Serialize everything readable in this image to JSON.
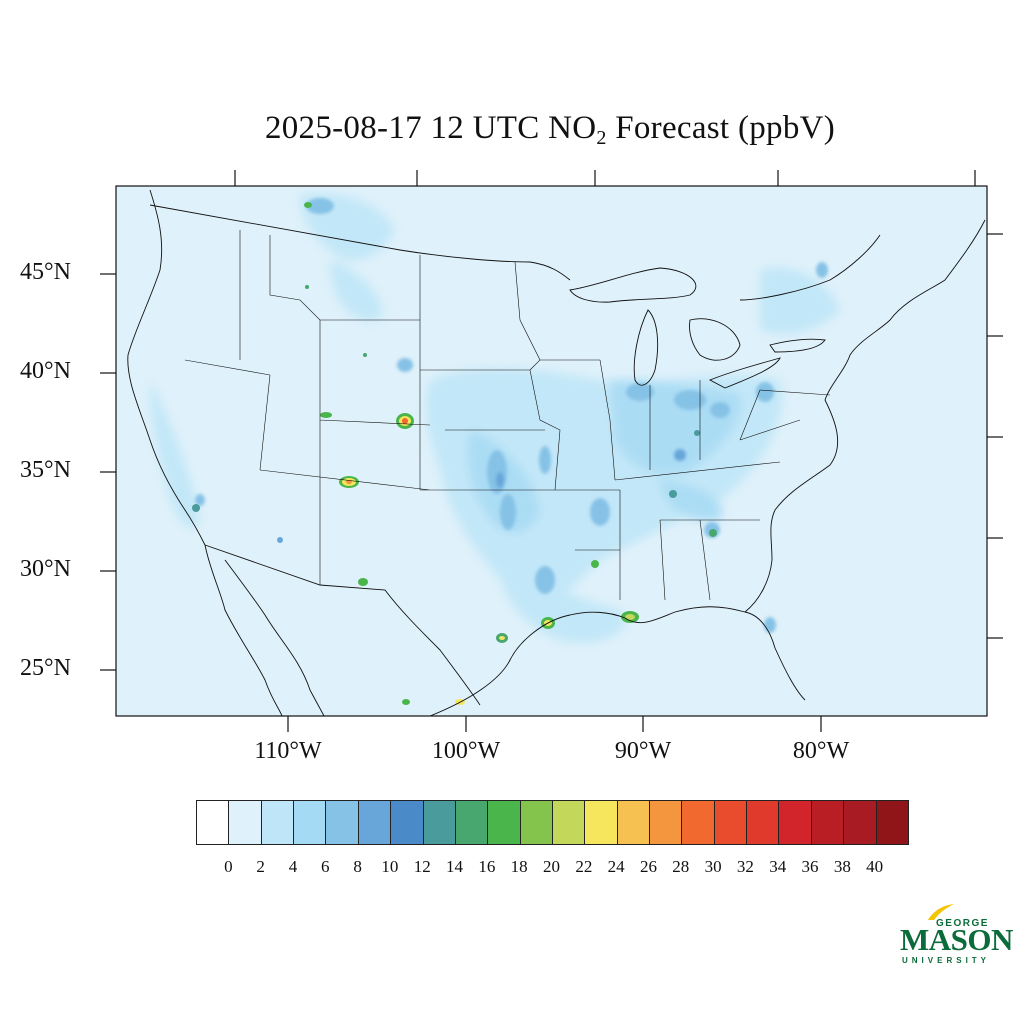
{
  "title": {
    "prefix": "2025-08-17 12 UTC NO",
    "subscript": "2",
    "suffix": " Forecast (ppbV)"
  },
  "map": {
    "background_color": "#dff1fa",
    "lat_labels": [
      "45°N",
      "40°N",
      "35°N",
      "30°N",
      "25°N"
    ],
    "lon_labels": [
      "110°W",
      "100°W",
      "90°W",
      "80°W"
    ]
  },
  "colorbar": {
    "colors": [
      "#ffffff",
      "#dff1fa",
      "#bfe6f8",
      "#a5daf4",
      "#86c2e6",
      "#68a6da",
      "#4b8ac9",
      "#4a9b9b",
      "#47a76e",
      "#4ab54a",
      "#85c44c",
      "#c3d75b",
      "#f5e65e",
      "#f6c150",
      "#f4963e",
      "#f1692e",
      "#e94c2c",
      "#df3a2c",
      "#d1242b",
      "#b81e23",
      "#a81b22",
      "#8f1518"
    ],
    "labels": [
      "0",
      "2",
      "4",
      "6",
      "8",
      "10",
      "12",
      "14",
      "16",
      "18",
      "20",
      "22",
      "24",
      "26",
      "28",
      "30",
      "32",
      "34",
      "36",
      "38",
      "40"
    ]
  },
  "logo": {
    "line1": "GEORGE",
    "line2": "MASON",
    "line3": "UNIVERSITY",
    "color": "#0b6b3a",
    "accent": "#f2c500"
  }
}
